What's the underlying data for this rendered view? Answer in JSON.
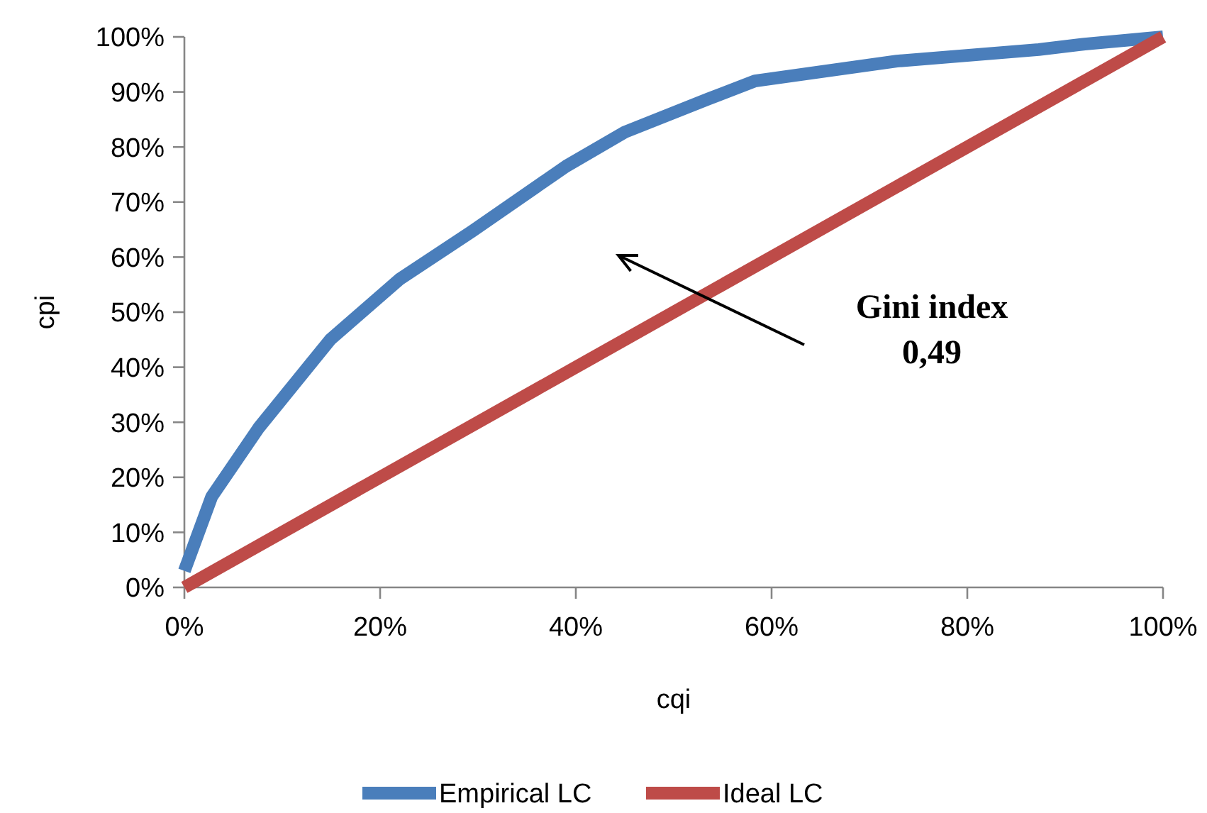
{
  "chart_data": {
    "type": "line",
    "xlabel": "cqi",
    "ylabel": "cpi",
    "xlim": [
      0,
      100
    ],
    "ylim": [
      0,
      100
    ],
    "xticks": [
      {
        "value": 0,
        "label": "0%"
      },
      {
        "value": 20,
        "label": "20%"
      },
      {
        "value": 40,
        "label": "40%"
      },
      {
        "value": 60,
        "label": "60%"
      },
      {
        "value": 80,
        "label": "80%"
      },
      {
        "value": 100,
        "label": "100%"
      }
    ],
    "yticks": [
      {
        "value": 0,
        "label": "0%"
      },
      {
        "value": 10,
        "label": "10%"
      },
      {
        "value": 20,
        "label": "20%"
      },
      {
        "value": 30,
        "label": "30%"
      },
      {
        "value": 40,
        "label": "40%"
      },
      {
        "value": 50,
        "label": "50%"
      },
      {
        "value": 60,
        "label": "60%"
      },
      {
        "value": 70,
        "label": "70%"
      },
      {
        "value": 80,
        "label": "80%"
      },
      {
        "value": 90,
        "label": "90%"
      },
      {
        "value": 100,
        "label": "100%"
      }
    ],
    "series": [
      {
        "name": "Empirical LC",
        "color": "#4a7ebb",
        "x": [
          0,
          2.8,
          7.6,
          14.9,
          22,
          29.4,
          39,
          45,
          53.5,
          58.3,
          72.8,
          87.3,
          92,
          100
        ],
        "values": [
          3,
          16.5,
          29,
          45,
          56,
          64.7,
          76.5,
          82.7,
          88.7,
          92,
          95.6,
          97.7,
          98.7,
          100
        ]
      },
      {
        "name": "Ideal LC",
        "color": "#be4b48",
        "x": [
          0,
          100
        ],
        "values": [
          0,
          100
        ]
      }
    ],
    "annotations": [
      "Gini index\n0,49"
    ],
    "legend": "bottom",
    "grid": false,
    "marker": "none",
    "line_style": "solid"
  }
}
